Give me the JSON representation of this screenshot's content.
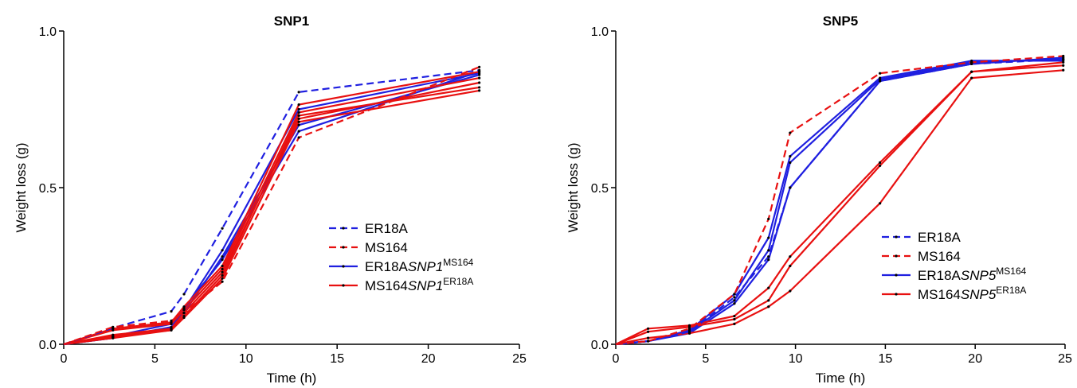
{
  "chart_data": [
    {
      "type": "line",
      "title": "SNP1",
      "xlabel": "Time (h)",
      "ylabel": "Weight loss (g)",
      "xlim": [
        0,
        25
      ],
      "ylim": [
        0,
        1.0
      ],
      "xticks": [
        0,
        5,
        10,
        15,
        20,
        25
      ],
      "yticks": [
        0.0,
        0.5,
        1.0
      ],
      "xtick_labels": [
        "0",
        "5",
        "10",
        "15",
        "20",
        "25"
      ],
      "ytick_labels": [
        "0.0",
        "0.5",
        "1.0"
      ],
      "legend_position": "center-right",
      "legend": [
        {
          "base": "ER18A",
          "italic": "",
          "sup": "",
          "color": "#1f1fe0",
          "dashed": true
        },
        {
          "base": "MS164",
          "italic": "",
          "sup": "",
          "color": "#e81010",
          "dashed": true
        },
        {
          "base": "ER18A",
          "italic": "SNP1",
          "sup": "MS164",
          "color": "#1f1fe0",
          "dashed": false
        },
        {
          "base": "MS164",
          "italic": "SNP1",
          "sup": "ER18A",
          "color": "#e81010",
          "dashed": false
        }
      ],
      "series": [
        {
          "group": "ER18A",
          "color": "#1f1fe0",
          "dashed": true,
          "x": [
            0,
            2.7,
            5.9,
            6.6,
            8.7,
            12.9,
            22.8
          ],
          "y": [
            0,
            0.052,
            0.105,
            0.16,
            0.37,
            0.805,
            0.875
          ]
        },
        {
          "group": "MS164",
          "color": "#e81010",
          "dashed": true,
          "x": [
            0,
            2.7,
            5.9,
            6.6,
            8.7,
            12.9,
            22.8
          ],
          "y": [
            0,
            0.055,
            0.075,
            0.1,
            0.2,
            0.66,
            0.885
          ]
        },
        {
          "color": "#1f1fe0",
          "dashed": false,
          "x": [
            0,
            2.7,
            5.9,
            6.6,
            8.7,
            12.9,
            22.8
          ],
          "y": [
            0,
            0.02,
            0.055,
            0.11,
            0.3,
            0.75,
            0.865
          ]
        },
        {
          "color": "#1f1fe0",
          "dashed": false,
          "x": [
            0,
            2.7,
            5.9,
            6.6,
            8.7,
            12.9,
            22.8
          ],
          "y": [
            0,
            0.02,
            0.05,
            0.1,
            0.28,
            0.7,
            0.86
          ]
        },
        {
          "color": "#1f1fe0",
          "dashed": false,
          "x": [
            0,
            2.7,
            5.9,
            6.6,
            8.7,
            12.9,
            22.8
          ],
          "y": [
            0,
            0.025,
            0.065,
            0.115,
            0.27,
            0.68,
            0.87
          ]
        },
        {
          "color": "#e81010",
          "dashed": false,
          "x": [
            0,
            2.7,
            5.9,
            6.6,
            8.7,
            12.9,
            22.8
          ],
          "y": [
            0,
            0.05,
            0.07,
            0.12,
            0.25,
            0.765,
            0.87
          ]
        },
        {
          "color": "#e81010",
          "dashed": false,
          "x": [
            0,
            2.7,
            5.9,
            6.6,
            8.7,
            12.9,
            22.8
          ],
          "y": [
            0,
            0.045,
            0.065,
            0.11,
            0.24,
            0.74,
            0.85
          ]
        },
        {
          "color": "#e81010",
          "dashed": false,
          "x": [
            0,
            2.7,
            5.9,
            6.6,
            8.7,
            12.9,
            22.8
          ],
          "y": [
            0,
            0.03,
            0.05,
            0.1,
            0.23,
            0.72,
            0.835
          ]
        },
        {
          "color": "#e81010",
          "dashed": false,
          "x": [
            0,
            2.7,
            5.9,
            6.6,
            8.7,
            12.9,
            22.8
          ],
          "y": [
            0,
            0.025,
            0.045,
            0.09,
            0.22,
            0.73,
            0.82
          ]
        },
        {
          "color": "#e81010",
          "dashed": false,
          "x": [
            0,
            2.7,
            5.9,
            6.6,
            8.7,
            12.9,
            22.8
          ],
          "y": [
            0,
            0.02,
            0.045,
            0.085,
            0.21,
            0.71,
            0.81
          ]
        }
      ]
    },
    {
      "type": "line",
      "title": "SNP5",
      "xlabel": "Time (h)",
      "ylabel": "Weight loss (g)",
      "xlim": [
        0,
        25
      ],
      "ylim": [
        0,
        1.0
      ],
      "xticks": [
        0,
        5,
        10,
        15,
        20,
        25
      ],
      "yticks": [
        0.0,
        0.5,
        1.0
      ],
      "xtick_labels": [
        "0",
        "5",
        "10",
        "15",
        "20",
        "25"
      ],
      "ytick_labels": [
        "0.0",
        "0.5",
        "1.0"
      ],
      "legend_position": "center-right",
      "legend": [
        {
          "base": "ER18A",
          "italic": "",
          "sup": "",
          "color": "#1f1fe0",
          "dashed": true
        },
        {
          "base": "MS164",
          "italic": "",
          "sup": "",
          "color": "#e81010",
          "dashed": true
        },
        {
          "base": "ER18A",
          "italic": "SNP5",
          "sup": "MS164",
          "color": "#1f1fe0",
          "dashed": false
        },
        {
          "base": "MS164",
          "italic": "SNP5",
          "sup": "ER18A",
          "color": "#e81010",
          "dashed": false
        }
      ],
      "series": [
        {
          "group": "ER18A",
          "color": "#1f1fe0",
          "dashed": true,
          "x": [
            0,
            1.8,
            4.1,
            6.6,
            8.5,
            9.7,
            14.7,
            19.8,
            24.9
          ],
          "y": [
            0,
            0.01,
            0.04,
            0.15,
            0.28,
            0.5,
            0.84,
            0.895,
            0.91
          ]
        },
        {
          "group": "MS164",
          "color": "#e81010",
          "dashed": true,
          "x": [
            0,
            1.8,
            4.1,
            6.6,
            8.5,
            9.7,
            14.7,
            19.8,
            24.9
          ],
          "y": [
            0,
            0.01,
            0.05,
            0.16,
            0.4,
            0.675,
            0.865,
            0.9,
            0.92
          ]
        },
        {
          "color": "#1f1fe0",
          "dashed": false,
          "x": [
            0,
            1.8,
            4.1,
            6.6,
            8.5,
            9.7,
            14.7,
            19.8,
            24.9
          ],
          "y": [
            0,
            0.01,
            0.045,
            0.16,
            0.34,
            0.6,
            0.85,
            0.905,
            0.905
          ]
        },
        {
          "color": "#1f1fe0",
          "dashed": false,
          "x": [
            0,
            1.8,
            4.1,
            6.6,
            8.5,
            9.7,
            14.7,
            19.8,
            24.9
          ],
          "y": [
            0,
            0.01,
            0.04,
            0.14,
            0.3,
            0.58,
            0.845,
            0.9,
            0.91
          ]
        },
        {
          "color": "#1f1fe0",
          "dashed": false,
          "x": [
            0,
            1.8,
            4.1,
            6.6,
            8.5,
            9.7,
            14.7,
            19.8,
            24.9
          ],
          "y": [
            0,
            0.01,
            0.035,
            0.13,
            0.27,
            0.5,
            0.84,
            0.895,
            0.915
          ]
        },
        {
          "color": "#e81010",
          "dashed": false,
          "x": [
            0,
            1.8,
            4.1,
            6.6,
            8.5,
            9.7,
            14.7,
            19.8,
            24.9
          ],
          "y": [
            0,
            0.05,
            0.06,
            0.09,
            0.18,
            0.28,
            0.58,
            0.87,
            0.9
          ]
        },
        {
          "color": "#e81010",
          "dashed": false,
          "x": [
            0,
            1.8,
            4.1,
            6.6,
            8.5,
            9.7,
            14.7,
            19.8,
            24.9
          ],
          "y": [
            0,
            0.04,
            0.055,
            0.08,
            0.14,
            0.25,
            0.57,
            0.87,
            0.89
          ]
        },
        {
          "color": "#e81010",
          "dashed": false,
          "x": [
            0,
            1.8,
            4.1,
            6.6,
            8.5,
            9.7,
            14.7,
            19.8,
            24.9
          ],
          "y": [
            0,
            0.02,
            0.035,
            0.065,
            0.12,
            0.17,
            0.45,
            0.85,
            0.875
          ]
        }
      ]
    }
  ]
}
